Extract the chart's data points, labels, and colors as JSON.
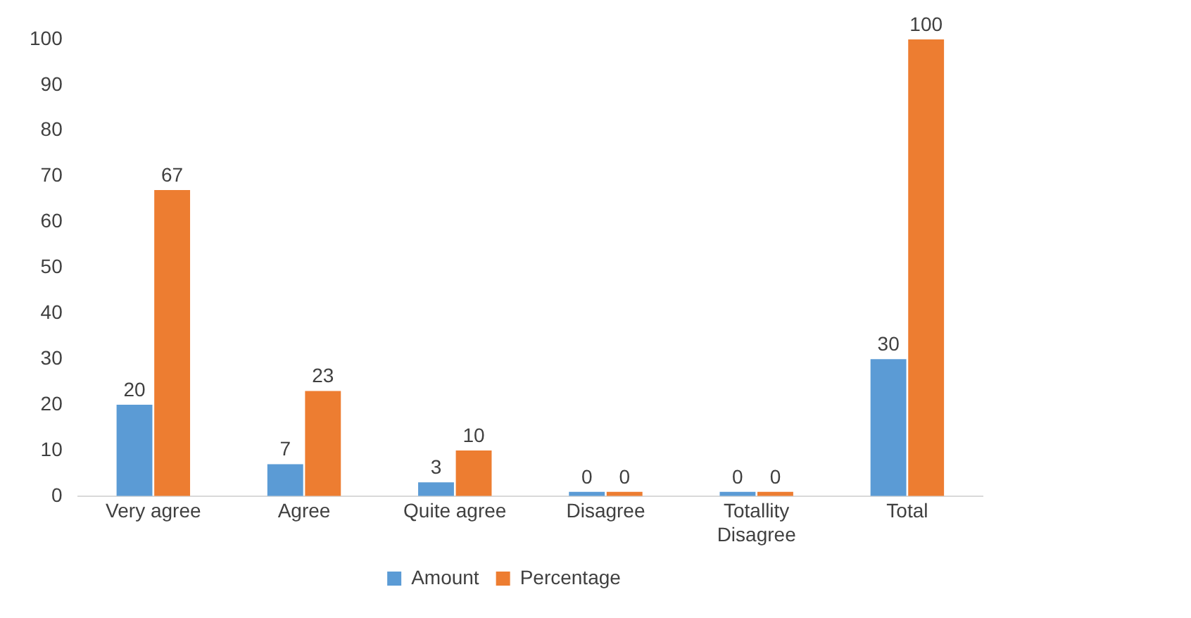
{
  "chart_data": {
    "type": "bar",
    "categories": [
      "Very agree",
      "Agree",
      "Quite agree",
      "Disagree",
      "Totallity Disagree",
      "Total"
    ],
    "series": [
      {
        "name": "Amount",
        "color": "#5b9bd5",
        "values": [
          20,
          7,
          3,
          0,
          0,
          30
        ]
      },
      {
        "name": "Percentage",
        "color": "#ed7d31",
        "values": [
          67,
          23,
          10,
          0,
          0,
          100
        ]
      }
    ],
    "ylim": [
      0,
      100
    ],
    "yticks": [
      0,
      10,
      20,
      30,
      40,
      50,
      60,
      70,
      80,
      90,
      100
    ],
    "grid": false,
    "legend": "bottom",
    "data_labels": true
  }
}
